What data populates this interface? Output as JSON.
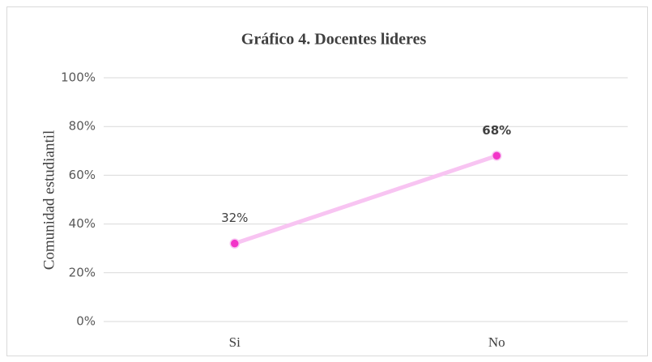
{
  "chart_data": {
    "type": "line",
    "title": "Gráfico 4. Docentes lideres",
    "y_label": "Comunidad estudiantil",
    "categories": [
      "Si",
      "No"
    ],
    "values": [
      32,
      68
    ],
    "value_labels": [
      "32%",
      "68%"
    ],
    "line_color": "#f8c4f2",
    "marker_color": "#f234c8",
    "ylim": [
      0,
      100
    ],
    "yticks": [
      {
        "value": 0,
        "label": "0%"
      },
      {
        "value": 20,
        "label": "20%"
      },
      {
        "value": 40,
        "label": "40%"
      },
      {
        "value": 60,
        "label": "60%"
      },
      {
        "value": 80,
        "label": "80%"
      },
      {
        "value": 100,
        "label": "100%"
      }
    ],
    "grid": true
  }
}
